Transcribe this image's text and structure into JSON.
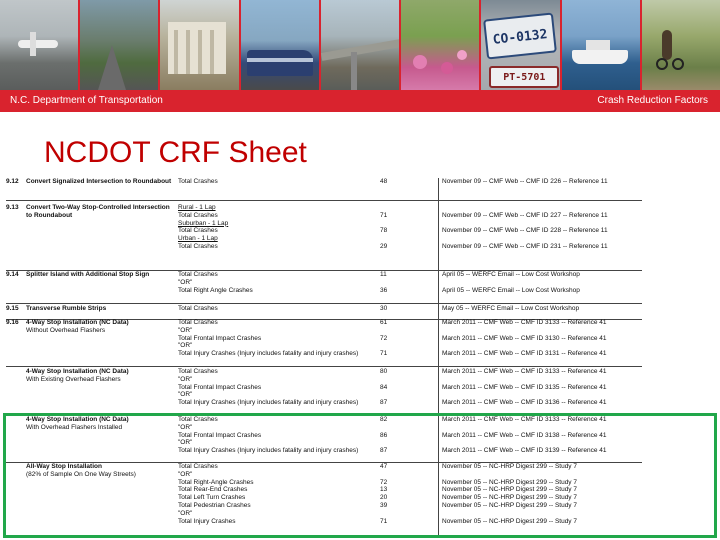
{
  "header": {
    "left": "N.C. Department of Transportation",
    "right": "Crash Reduction Factors"
  },
  "title": "NCDOT CRF Sheet",
  "photos": [
    "airplane-photo",
    "highway-photo",
    "building-photo",
    "train-photo",
    "bridge-photo",
    "flowers-photo",
    "license-plate-photo",
    "ferry-photo",
    "bike-path-photo"
  ],
  "plate_text": "CO-0132",
  "plate_text2": "PT-5701",
  "accent_color": "#d9232e",
  "highlight_color": "#21a74a",
  "rows": [
    {
      "id": "9.12",
      "name": "Convert Signalized Intersection to Roundabout",
      "sub": "",
      "lines": [
        [
          "Total Crashes",
          "48",
          "November 09 -- CMF Web -- CMF ID 226 -- Reference 11"
        ]
      ]
    },
    {
      "id": "9.13",
      "name": "Convert Two-Way Stop-Controlled Intersection to Roundabout",
      "sub": "",
      "lines": [
        [
          "Rural - 1 Lap",
          "",
          ""
        ],
        [
          "Total Crashes",
          "71",
          "November 09 -- CMF Web -- CMF ID 227 -- Reference 11"
        ],
        [
          "Suburban - 1 Lap",
          "",
          ""
        ],
        [
          "Total Crashes",
          "78",
          "November 09 -- CMF Web -- CMF ID 228 -- Reference 11"
        ],
        [
          "Urban - 1 Lap",
          "",
          ""
        ],
        [
          "Total Crashes",
          "29",
          "November 09 -- CMF Web -- CMF ID 231 -- Reference 11"
        ]
      ]
    },
    {
      "id": "9.14",
      "name": "Splitter Island with Additional Stop Sign",
      "sub": "",
      "lines": [
        [
          "Total Crashes",
          "11",
          "April 05 -- WERFC Email -- Low Cost Workshop"
        ],
        [
          "\"OR\"",
          "",
          ""
        ],
        [
          "Total Right Angle Crashes",
          "36",
          "April 05 -- WERFC Email -- Low Cost Workshop"
        ]
      ]
    },
    {
      "id": "9.15",
      "name": "Transverse Rumble Strips",
      "sub": "",
      "lines": [
        [
          "Total Crashes",
          "30",
          "May 05 -- WERFC Email -- Low Cost Workshop"
        ]
      ]
    },
    {
      "id": "9.16",
      "name": "4-Way Stop Installation (NC Data)",
      "sub": "Without Overhead Flashers",
      "lines": [
        [
          "Total Crashes",
          "61",
          "March 2011 -- CMF Web -- CMF ID 3133 -- Reference 41"
        ],
        [
          "\"OR\"",
          "",
          ""
        ],
        [
          "Total Frontal Impact Crashes",
          "72",
          "March 2011 -- CMF Web -- CMF ID 3130 -- Reference 41"
        ],
        [
          "\"OR\"",
          "",
          ""
        ],
        [
          "Total Injury Crashes    (Injury includes fatality and injury crashes)",
          "71",
          "March 2011 -- CMF Web -- CMF ID 3131 -- Reference 41"
        ]
      ]
    },
    {
      "id": "",
      "name": "4-Way Stop Installation (NC Data)",
      "sub": "With Existing Overhead Flashers",
      "lines": [
        [
          "Total Crashes",
          "80",
          "March 2011 -- CMF Web -- CMF ID 3133 -- Reference 41"
        ],
        [
          "\"OR\"",
          "",
          ""
        ],
        [
          "Total Frontal Impact Crashes",
          "84",
          "March 2011 -- CMF Web -- CMF ID 3135 -- Reference 41"
        ],
        [
          "\"OR\"",
          "",
          ""
        ],
        [
          "Total Injury Crashes    (Injury includes fatality and injury crashes)",
          "87",
          "March 2011 -- CMF Web -- CMF ID 3136 -- Reference 41"
        ]
      ]
    },
    {
      "id": "",
      "name": "4-Way Stop Installation (NC Data)",
      "sub": "With Overhead Flashers Installed",
      "lines": [
        [
          "Total Crashes",
          "82",
          "March 2011 -- CMF Web -- CMF ID 3133 -- Reference 41"
        ],
        [
          "\"OR\"",
          "",
          ""
        ],
        [
          "Total Frontal Impact Crashes",
          "86",
          "March 2011 -- CMF Web -- CMF ID 3138 -- Reference 41"
        ],
        [
          "\"OR\"",
          "",
          ""
        ],
        [
          "Total Injury Crashes    (Injury includes fatality and injury crashes)",
          "87",
          "March 2011 -- CMF Web -- CMF ID 3139 -- Reference 41"
        ]
      ]
    },
    {
      "id": "",
      "name": "All-Way Stop Installation",
      "sub": "(82% of Sample On One Way Streets)",
      "lines": [
        [
          "Total Crashes",
          "47",
          "November 05 -- NC-HRP Digest 299 -- Study 7"
        ],
        [
          "\"OR\"",
          "",
          ""
        ],
        [
          "Total Right-Angle Crashes",
          "72",
          "November 05 -- NC-HRP Digest 299 -- Study 7"
        ],
        [
          "Total Rear-End Crashes",
          "13",
          "November 05 -- NC-HRP Digest 299 -- Study 7"
        ],
        [
          "Total Left Turn Crashes",
          "20",
          "November 05 -- NC-HRP Digest 299 -- Study 7"
        ],
        [
          "Total Pedestrian Crashes",
          "39",
          "November 05 -- NC-HRP Digest 299 -- Study 7"
        ],
        [
          "\"OR\"",
          "",
          ""
        ],
        [
          "Total Injury Crashes",
          "71",
          "November 05 -- NC-HRP Digest 299 -- Study 7"
        ]
      ]
    }
  ]
}
